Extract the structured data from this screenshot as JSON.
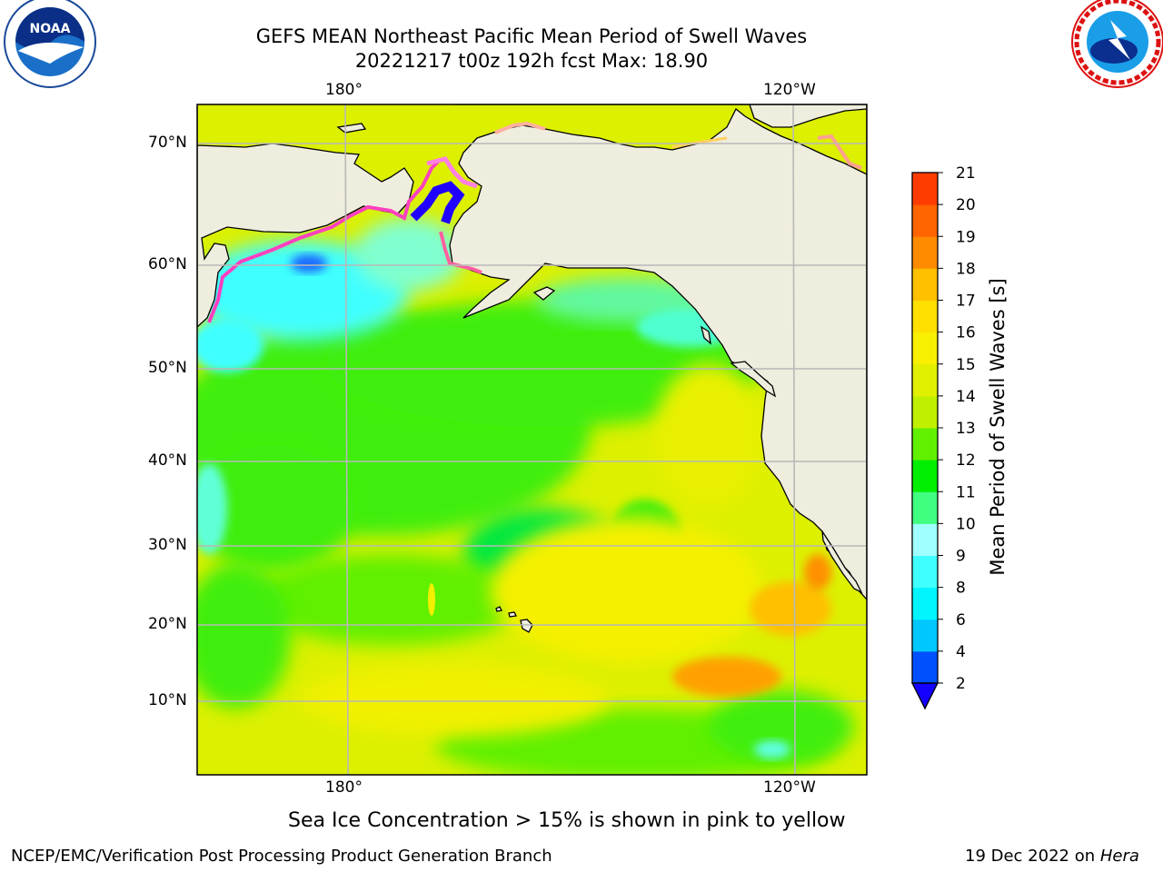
{
  "title": {
    "line1": "GEFS MEAN Northeast Pacific Mean Period of Swell Waves",
    "line2": "20221217 t00z 192h fcst   Max: 18.90"
  },
  "logos": {
    "left": {
      "name": "noaa-logo",
      "text": "NOAA",
      "ring_text": "NATIONAL OCEANIC AND ATMOSPHERIC ADMINISTRATION · U.S. DEPARTMENT OF COMMERCE"
    },
    "right": {
      "name": "nws-logo",
      "ring_text": "NATIONAL WEATHER SERVICE"
    }
  },
  "map": {
    "lon_ticks_top": [
      "180°",
      "120°W"
    ],
    "lon_ticks_bottom": [
      "180°",
      "120°W"
    ],
    "lat_ticks": [
      "70°N",
      "60°N",
      "50°N",
      "40°N",
      "30°N",
      "20°N",
      "10°N"
    ],
    "land_color": "#efedde",
    "grid_color": "#b8b8b8"
  },
  "colorbar": {
    "label": "Mean Period of Swell Waves [s]",
    "ticks": [
      "21",
      "20",
      "19",
      "18",
      "17",
      "16",
      "15",
      "14",
      "13",
      "12",
      "11",
      "10",
      "9",
      "8",
      "6",
      "4",
      "2"
    ],
    "levels": [
      2,
      4,
      6,
      8,
      9,
      10,
      11,
      12,
      13,
      14,
      15,
      16,
      17,
      18,
      19,
      20,
      21
    ],
    "colors": [
      "#0050ff",
      "#00c8ff",
      "#00f5ff",
      "#40ffff",
      "#a0ffff",
      "#40ff80",
      "#00ee00",
      "#60f000",
      "#c0f000",
      "#e0f000",
      "#f8f000",
      "#ffe000",
      "#ffc000",
      "#ff8c00",
      "#ff6400",
      "#ff3c00",
      "#ff0000"
    ],
    "extend_color": "#1400ff"
  },
  "caption": "Sea Ice Concentration > 15% is shown in pink to yellow",
  "footer": {
    "left": "NCEP/EMC/Verification Post Processing Product Generation Branch",
    "right_prefix": "19 Dec 2022 on ",
    "right_host": "Hera"
  }
}
